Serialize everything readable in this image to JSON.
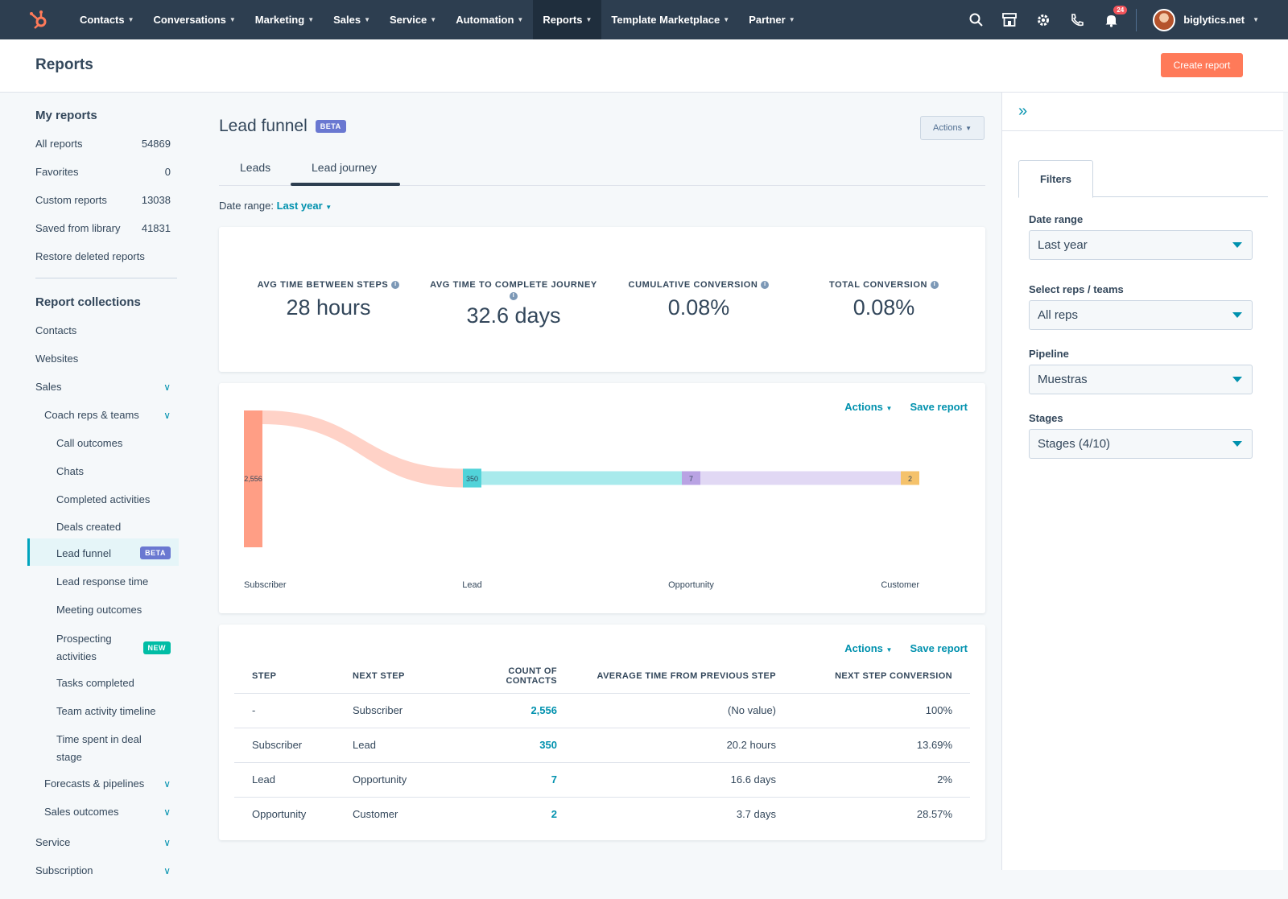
{
  "nav": {
    "items": [
      {
        "label": "Contacts",
        "active": false
      },
      {
        "label": "Conversations",
        "active": false
      },
      {
        "label": "Marketing",
        "active": false
      },
      {
        "label": "Sales",
        "active": false
      },
      {
        "label": "Service",
        "active": false
      },
      {
        "label": "Automation",
        "active": false
      },
      {
        "label": "Reports",
        "active": true
      },
      {
        "label": "Template Marketplace",
        "active": false
      },
      {
        "label": "Partner",
        "active": false
      }
    ],
    "notification_count": "24",
    "account_name": "biglytics.net"
  },
  "header": {
    "title": "Reports",
    "create_button": "Create report"
  },
  "sidebar": {
    "my_reports_heading": "My reports",
    "my_reports": [
      {
        "label": "All reports",
        "count": "54869"
      },
      {
        "label": "Favorites",
        "count": "0"
      },
      {
        "label": "Custom reports",
        "count": "13038"
      },
      {
        "label": "Saved from library",
        "count": "41831"
      },
      {
        "label": "Restore deleted reports",
        "count": ""
      }
    ],
    "collections_heading": "Report collections",
    "collections": {
      "contacts": "Contacts",
      "websites": "Websites",
      "sales": "Sales",
      "coach": "Coach reps & teams",
      "coach_items": [
        "Call outcomes",
        "Chats",
        "Completed activities",
        "Deals created",
        "Lead funnel",
        "Lead response time",
        "Meeting outcomes",
        "Prospecting activities",
        "Tasks completed",
        "Team activity timeline",
        "Time spent in deal stage"
      ],
      "forecasts": "Forecasts & pipelines",
      "sales_outcomes": "Sales outcomes",
      "service": "Service",
      "subscription": "Subscription"
    },
    "beta_badge": "BETA",
    "new_badge": "NEW"
  },
  "main": {
    "title": "Lead funnel",
    "title_badge": "BETA",
    "actions_button": "Actions",
    "tabs": [
      {
        "label": "Leads",
        "active": false
      },
      {
        "label": "Lead journey",
        "active": true
      }
    ],
    "date_range_label": "Date range:",
    "date_range_value": "Last year",
    "kpis": [
      {
        "label": "AVG TIME BETWEEN STEPS",
        "value": "28 hours"
      },
      {
        "label": "AVG TIME TO COMPLETE JOURNEY",
        "value": "32.6 days"
      },
      {
        "label": "CUMULATIVE CONVERSION",
        "value": "0.08%"
      },
      {
        "label": "TOTAL CONVERSION",
        "value": "0.08%"
      }
    ],
    "card_actions": "Actions",
    "save_report": "Save report"
  },
  "chart_data": {
    "type": "sankey",
    "stages": [
      "Subscriber",
      "Lead",
      "Opportunity",
      "Customer"
    ],
    "values": [
      2556,
      350,
      7,
      2
    ],
    "value_labels": [
      "2,556",
      "350",
      "7",
      "2"
    ],
    "colors": {
      "Subscriber": "#ff9e85",
      "Lead": "#51d3d9",
      "Opportunity": "#b9a3e3",
      "Customer": "#f5c26b"
    },
    "flow_colors": [
      "#ffd2c7",
      "#a8eaec",
      "#e1d8f4"
    ]
  },
  "table": {
    "headers": [
      "STEP",
      "NEXT STEP",
      "COUNT OF CONTACTS",
      "AVERAGE TIME FROM PREVIOUS STEP",
      "NEXT STEP CONVERSION"
    ],
    "rows": [
      [
        "-",
        "Subscriber",
        "2,556",
        "(No value)",
        "100%"
      ],
      [
        "Subscriber",
        "Lead",
        "350",
        "20.2 hours",
        "13.69%"
      ],
      [
        "Lead",
        "Opportunity",
        "7",
        "16.6 days",
        "2%"
      ],
      [
        "Opportunity",
        "Customer",
        "2",
        "3.7 days",
        "28.57%"
      ]
    ]
  },
  "filters": {
    "tab_label": "Filters",
    "fields": [
      {
        "label": "Date range",
        "value": "Last year"
      },
      {
        "label": "Select reps / teams",
        "value": "All reps"
      },
      {
        "label": "Pipeline",
        "value": "Muestras"
      },
      {
        "label": "Stages",
        "value": "Stages (4/10)"
      }
    ]
  }
}
